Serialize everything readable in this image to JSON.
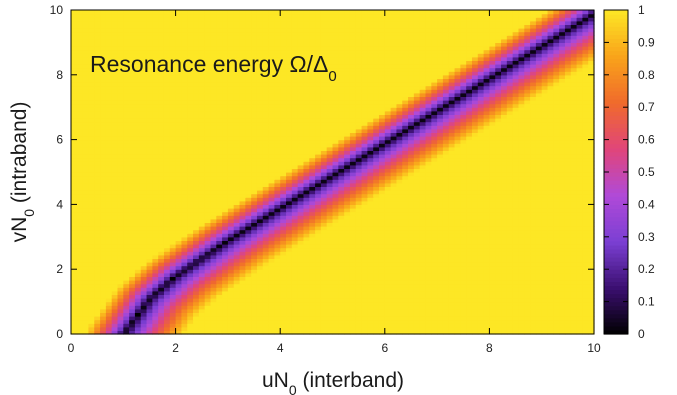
{
  "chart_data": {
    "type": "heatmap",
    "annotation": "Resonance energy Ω/Δ",
    "annotation_sub": "0",
    "xlabel": {
      "main": "uN",
      "sub": "0",
      "rest": " (interband)"
    },
    "ylabel": {
      "main": "vN",
      "sub": "0",
      "rest": " (intraband)"
    },
    "xlim": [
      0,
      10
    ],
    "ylim": [
      0,
      10
    ],
    "x_ticks": [
      "0",
      "2",
      "4",
      "6",
      "8",
      "10"
    ],
    "y_ticks": [
      "0",
      "2",
      "4",
      "6",
      "8",
      "10"
    ],
    "colorbar_ticks": [
      "0",
      "0.1",
      "0.2",
      "0.3",
      "0.4",
      "0.5",
      "0.6",
      "0.7",
      "0.8",
      "0.9",
      "1"
    ],
    "colorbar_range": [
      0,
      1
    ],
    "grid": false,
    "colormap": [
      "#000000",
      "#3b0f70",
      "#7b3fd3",
      "#b04ad8",
      "#e0457a",
      "#f06a2c",
      "#f9a31a",
      "#fde725"
    ],
    "resonance_curve": {
      "description_points_x": [
        1.0,
        1.5,
        2.0,
        3.0,
        4.0,
        5.0,
        6.0,
        7.0,
        8.0,
        9.0,
        10.0
      ],
      "description_points_y": [
        0.0,
        1.1,
        1.8,
        2.9,
        3.9,
        4.9,
        5.9,
        6.9,
        7.9,
        8.9,
        9.9
      ]
    },
    "grid_resolution": [
      90,
      90
    ]
  }
}
